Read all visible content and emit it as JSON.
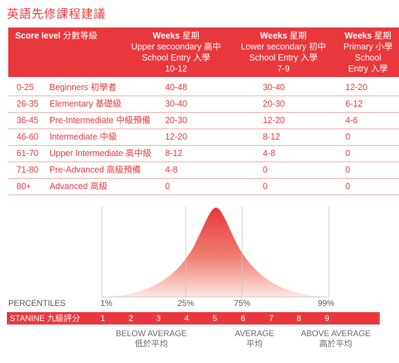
{
  "title": "英語先修課程建議",
  "table": {
    "headers": [
      {
        "bold": "Score level",
        "rest": "分數等級",
        "lines": []
      },
      {
        "bold": "Weeks",
        "rest": "星期",
        "lines": [
          "Upper secoondary 高中",
          "School Entry 入學",
          "10-12"
        ]
      },
      {
        "bold": "Weeks",
        "rest": "星期",
        "lines": [
          "Lower secondary 初中",
          "School Entry 入學",
          "7-9"
        ]
      },
      {
        "bold": "Weeks",
        "rest": "星期",
        "lines": [
          "Primary 小學",
          "School",
          "Entry 入學"
        ]
      }
    ],
    "rows": [
      {
        "score": "0-25",
        "level": "Beginners 初學者",
        "w1": "40-48",
        "w2": "30-40",
        "w3": "12-20"
      },
      {
        "score": "26-35",
        "level": "Elementary 基礎級",
        "w1": "30-40",
        "w2": "20-30",
        "w3": "6-12"
      },
      {
        "score": "36-45",
        "level": "Pre-Intermediate 中級預備",
        "w1": "20-30",
        "w2": "12-20",
        "w3": "4-6"
      },
      {
        "score": "46-60",
        "level": "Intermediate 中級",
        "w1": "12-20",
        "w2": "8-12",
        "w3": "0"
      },
      {
        "score": "61-70",
        "level": "Upper Intermediate 高中級",
        "w1": "8-12",
        "w2": "4-8",
        "w3": "0"
      },
      {
        "score": "71-80",
        "level": "Pre-Advanced 高級預備",
        "w1": "4-8",
        "w2": "0",
        "w3": "0"
      },
      {
        "score": "80+",
        "level": "Advanced 高級",
        "w1": "0",
        "w2": "0",
        "w3": "0"
      }
    ]
  },
  "percentiles": {
    "label": "PERCENTILES",
    "marks": [
      "1%",
      "25%",
      "75%",
      "99%"
    ]
  },
  "stanine": {
    "label": "STANINE 九級評分",
    "values": [
      "1",
      "2",
      "3",
      "4",
      "5",
      "6",
      "7",
      "8",
      "9"
    ]
  },
  "bands": [
    {
      "en": "BELOW AVERAGE",
      "zh": "低於平均"
    },
    {
      "en": "AVERAGE",
      "zh": "平均"
    },
    {
      "en": "ABOVE AVERAGE",
      "zh": "高於平均"
    }
  ],
  "colors": {
    "accent": "#e8383d",
    "row_rule": "#f2a3a5",
    "grid": "#c8c8c8"
  }
}
